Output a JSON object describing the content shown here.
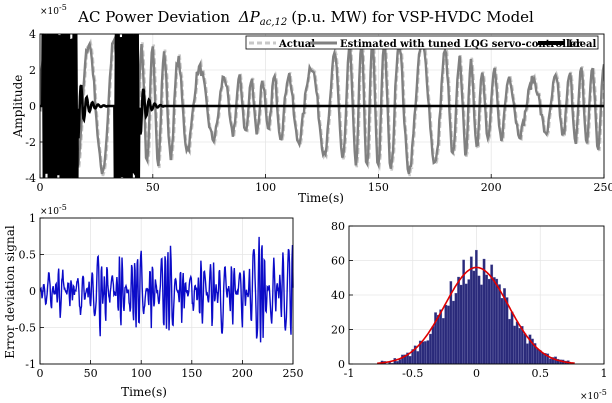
{
  "chart_data": [
    {
      "type": "line",
      "title": "AC Power Deviation",
      "title_symbol": "ΔP",
      "title_sub": "ac,12",
      "title_suffix": "(p.u. MW) for VSP-HVDC Model",
      "xlabel": "Time(s)",
      "ylabel": "Amplitude",
      "exponent_label": "×10",
      "exponent_power": "-5",
      "xlim": [
        0,
        250
      ],
      "ylim": [
        -4,
        4
      ],
      "xticks": [
        "0",
        "50",
        "100",
        "150",
        "200",
        "250"
      ],
      "yticks": [
        "4",
        "2",
        "0",
        "-2",
        "-4"
      ],
      "grid": true,
      "legend_position": "top-right",
      "series": [
        {
          "name": "Actual",
          "style": "dashed",
          "color": "#c8c8c8",
          "amplitude_range": [
            -4,
            4
          ]
        },
        {
          "name": "Estimated with tuned LQG servo-controller",
          "style": "solid",
          "color": "#808080",
          "amplitude_range": [
            -4,
            4
          ]
        },
        {
          "name": "Ideal",
          "style": "solid",
          "color": "#000000",
          "x": [
            0,
            10,
            15,
            18,
            22,
            25,
            28,
            30,
            33,
            38,
            42,
            45,
            48,
            50,
            55,
            60,
            250
          ],
          "y": [
            0,
            4,
            -4,
            1.5,
            -2,
            0.8,
            0.3,
            0,
            0,
            4,
            -4,
            2,
            -1,
            0.2,
            0,
            0,
            0
          ]
        }
      ]
    },
    {
      "type": "line",
      "xlabel": "Time(s)",
      "ylabel": "Error deviation signal",
      "exponent_label": "×10",
      "exponent_power": "-5",
      "xlim": [
        0,
        250
      ],
      "ylim": [
        -1,
        1
      ],
      "xticks": [
        "0",
        "50",
        "100",
        "150",
        "200",
        "250"
      ],
      "yticks": [
        "1",
        "0.5",
        "0",
        "-0.5",
        "-1"
      ],
      "grid": true,
      "series": [
        {
          "color": "#0b0bc8",
          "x": [
            0,
            10,
            20,
            30,
            40,
            50,
            60,
            65,
            70,
            80,
            90,
            100,
            110,
            120,
            130,
            140,
            150,
            160,
            170,
            180,
            190,
            200,
            210,
            220,
            230,
            240,
            250
          ],
          "y": [
            0,
            0.3,
            -0.4,
            0.25,
            -0.35,
            0.2,
            0.6,
            -0.5,
            0.3,
            -0.55,
            0.4,
            0.55,
            -0.5,
            0.45,
            0.6,
            -0.4,
            0.35,
            -0.5,
            0.5,
            -0.6,
            0.45,
            -0.5,
            0.6,
            0.75,
            -0.55,
            0.5,
            0.65
          ]
        }
      ]
    },
    {
      "type": "bar",
      "subtype": "histogram",
      "xlim": [
        -1,
        1
      ],
      "ylim": [
        0,
        80
      ],
      "xticks": [
        "-1",
        "-0.5",
        "0",
        "0.5",
        "1"
      ],
      "yticks": [
        "80",
        "60",
        "40",
        "20",
        "0"
      ],
      "exponent_label": "×10",
      "exponent_power": "-5",
      "grid": true,
      "bar_color": "#2a2a7a",
      "fit_color": "#e00000",
      "fit": {
        "mean": 0.0,
        "sigma": 0.25,
        "peak": 56
      },
      "bins": {
        "start": -0.75,
        "end": 0.75,
        "count": 75
      }
    }
  ]
}
